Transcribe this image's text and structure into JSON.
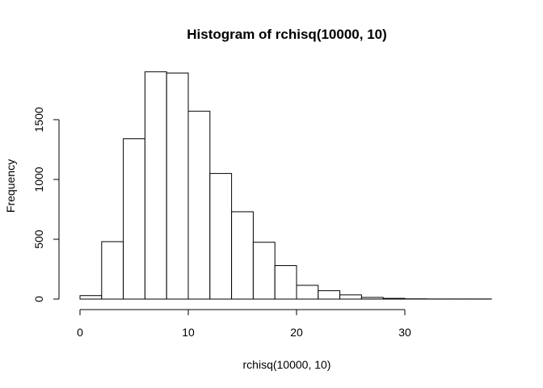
{
  "chart_data": {
    "type": "bar",
    "title": "Histogram of rchisq(10000, 10)",
    "xlabel": "rchisq(10000, 10)",
    "ylabel": "Frequency",
    "bin_width": 2,
    "xlim": [
      0,
      38
    ],
    "ylim": [
      0,
      1900
    ],
    "x_ticks": [
      0,
      10,
      20,
      30
    ],
    "y_ticks": [
      0,
      500,
      1000,
      1500
    ],
    "bins": [
      {
        "start": 0,
        "end": 2,
        "count": 29
      },
      {
        "start": 2,
        "end": 4,
        "count": 480
      },
      {
        "start": 4,
        "end": 6,
        "count": 1340
      },
      {
        "start": 6,
        "end": 8,
        "count": 1900
      },
      {
        "start": 8,
        "end": 10,
        "count": 1890
      },
      {
        "start": 10,
        "end": 12,
        "count": 1570
      },
      {
        "start": 12,
        "end": 14,
        "count": 1050
      },
      {
        "start": 14,
        "end": 16,
        "count": 730
      },
      {
        "start": 16,
        "end": 18,
        "count": 475
      },
      {
        "start": 18,
        "end": 20,
        "count": 280
      },
      {
        "start": 20,
        "end": 22,
        "count": 115
      },
      {
        "start": 22,
        "end": 24,
        "count": 70
      },
      {
        "start": 24,
        "end": 26,
        "count": 35
      },
      {
        "start": 26,
        "end": 28,
        "count": 14
      },
      {
        "start": 28,
        "end": 30,
        "count": 6
      },
      {
        "start": 30,
        "end": 32,
        "count": 2
      },
      {
        "start": 32,
        "end": 34,
        "count": 1
      },
      {
        "start": 34,
        "end": 36,
        "count": 1
      },
      {
        "start": 36,
        "end": 38,
        "count": 1
      }
    ],
    "grid": false,
    "legend": "none",
    "bar_fill": "#ffffff",
    "bar_stroke": "#000000"
  }
}
